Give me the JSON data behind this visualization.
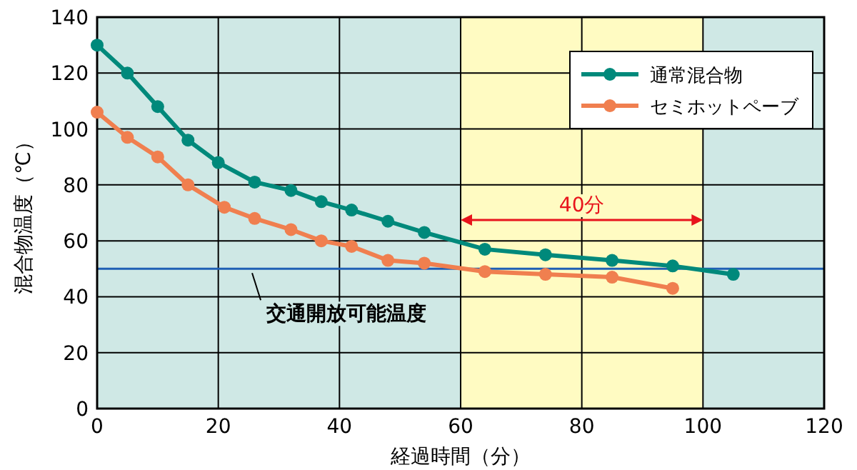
{
  "chart_data": {
    "type": "line",
    "xlabel": "経過時間（分）",
    "ylabel": "混合物温度（℃）",
    "xlim": [
      0,
      120
    ],
    "ylim": [
      0,
      140
    ],
    "xticks": [
      0,
      20,
      40,
      60,
      80,
      100,
      120
    ],
    "yticks": [
      0,
      20,
      40,
      60,
      80,
      100,
      120,
      140
    ],
    "grid": true,
    "legend": "top right",
    "marker": "circle",
    "line_style": "solid",
    "series": [
      {
        "name": "通常混合物",
        "color": "#00897b",
        "x": [
          0,
          5,
          10,
          15,
          20,
          26,
          32,
          37,
          42,
          48,
          54,
          64,
          74,
          85,
          95,
          105
        ],
        "values": [
          130,
          120,
          108,
          96,
          88,
          81,
          78,
          74,
          71,
          67,
          63,
          57,
          55,
          53,
          51,
          48
        ]
      },
      {
        "name": "セミホットペーブ",
        "color": "#f07f4f",
        "x": [
          0,
          5,
          10,
          15,
          21,
          26,
          32,
          37,
          42,
          48,
          54,
          64,
          74,
          85,
          95
        ],
        "values": [
          106,
          97,
          90,
          80,
          72,
          68,
          64,
          60,
          58,
          53,
          52,
          49,
          48,
          47,
          43
        ]
      }
    ],
    "bands": [
      {
        "axis": "x",
        "from": 0,
        "to": 60,
        "color": "#cfe8e5"
      },
      {
        "axis": "x",
        "from": 60,
        "to": 100,
        "color": "#fffbc2"
      },
      {
        "axis": "x",
        "from": 100,
        "to": 120,
        "color": "#cfe8e5"
      }
    ],
    "ref_lines": [
      {
        "axis": "y",
        "value": 50,
        "color": "#1f5fb4"
      }
    ],
    "annotations": [
      "40分",
      {
        "text": "交通開放可能温度",
        "x": 27,
        "y": 50
      }
    ]
  }
}
